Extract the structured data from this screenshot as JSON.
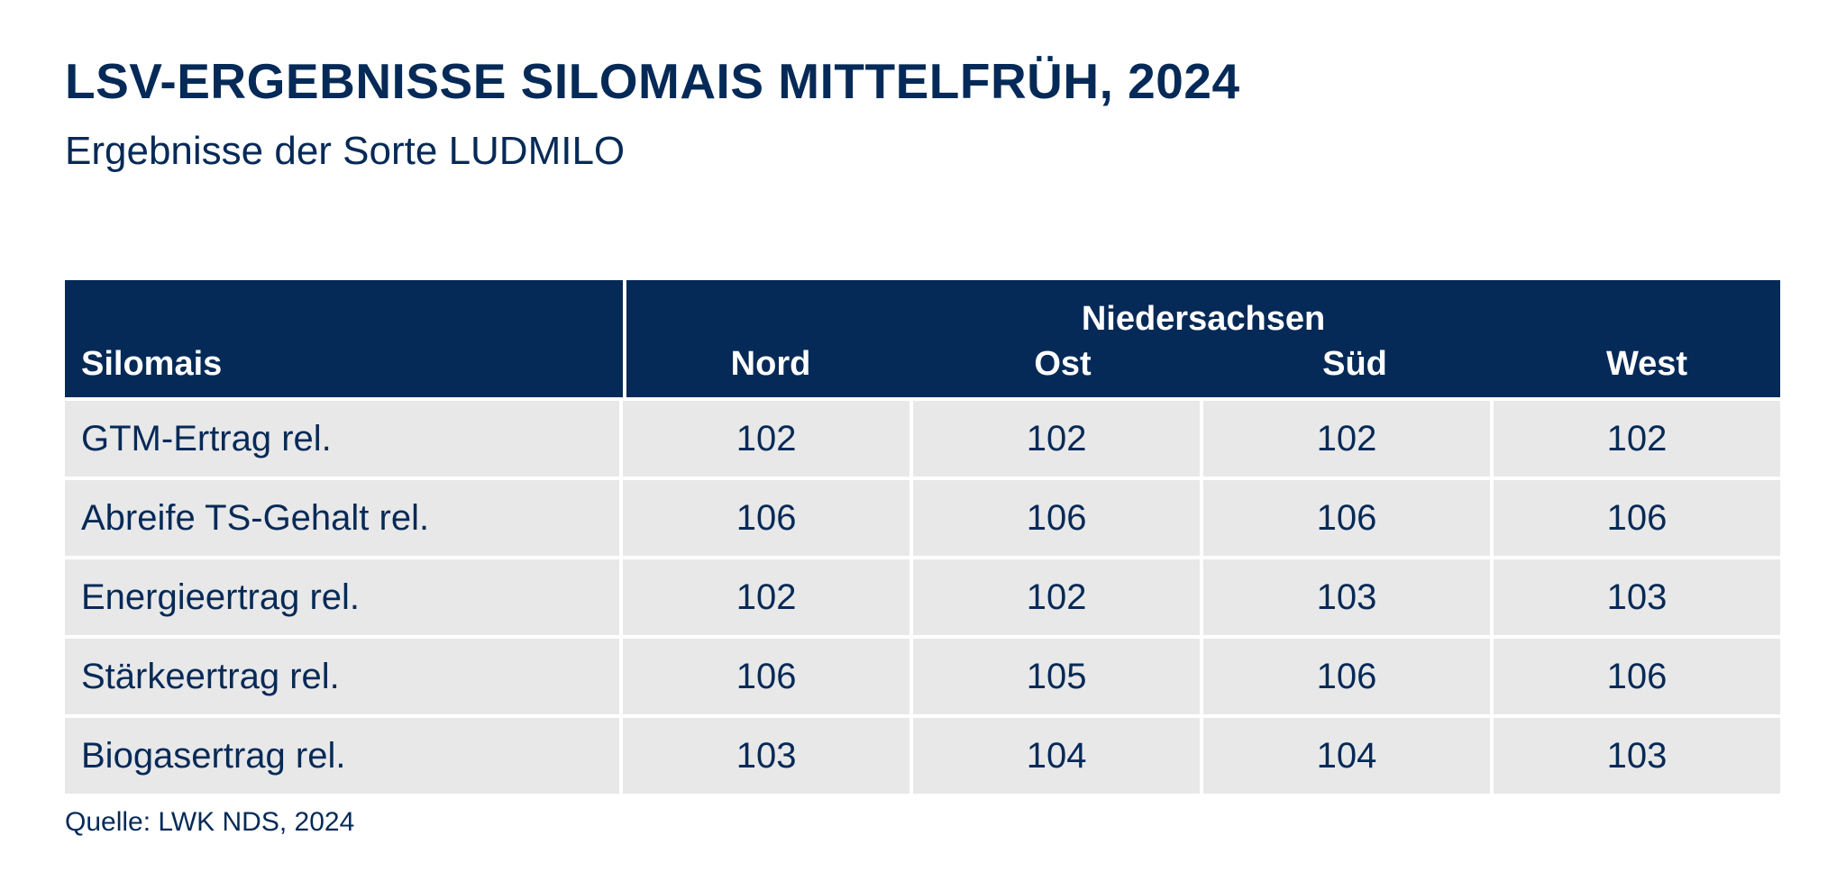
{
  "title": "LSV-ERGEBNISSE SILOMAIS MITTELFRÜH, 2024",
  "subtitle": "Ergebnisse der Sorte LUDMILO",
  "source": "Quelle: LWK NDS, 2024",
  "colors": {
    "header_bg": "#062a57",
    "header_text": "#ffffff",
    "cell_bg": "#e8e8e9",
    "text": "#062a57"
  },
  "chart_data": {
    "type": "table",
    "title": "LSV-ERGEBNISSE SILOMAIS MITTELFRÜH, 2024",
    "subtitle": "Ergebnisse der Sorte LUDMILO",
    "row_header": "Silomais",
    "column_group": "Niedersachsen",
    "columns": [
      "Nord",
      "Ost",
      "Süd",
      "West"
    ],
    "rows": [
      {
        "label": "GTM-Ertrag rel.",
        "values": [
          102,
          102,
          102,
          102
        ]
      },
      {
        "label": "Abreife TS-Gehalt rel.",
        "values": [
          106,
          106,
          106,
          106
        ]
      },
      {
        "label": "Energieertrag rel.",
        "values": [
          102,
          102,
          103,
          103
        ]
      },
      {
        "label": "Stärkeertrag rel.",
        "values": [
          106,
          105,
          106,
          106
        ]
      },
      {
        "label": "Biogasertrag rel.",
        "values": [
          103,
          104,
          104,
          103
        ]
      }
    ],
    "source": "Quelle: LWK NDS, 2024"
  }
}
